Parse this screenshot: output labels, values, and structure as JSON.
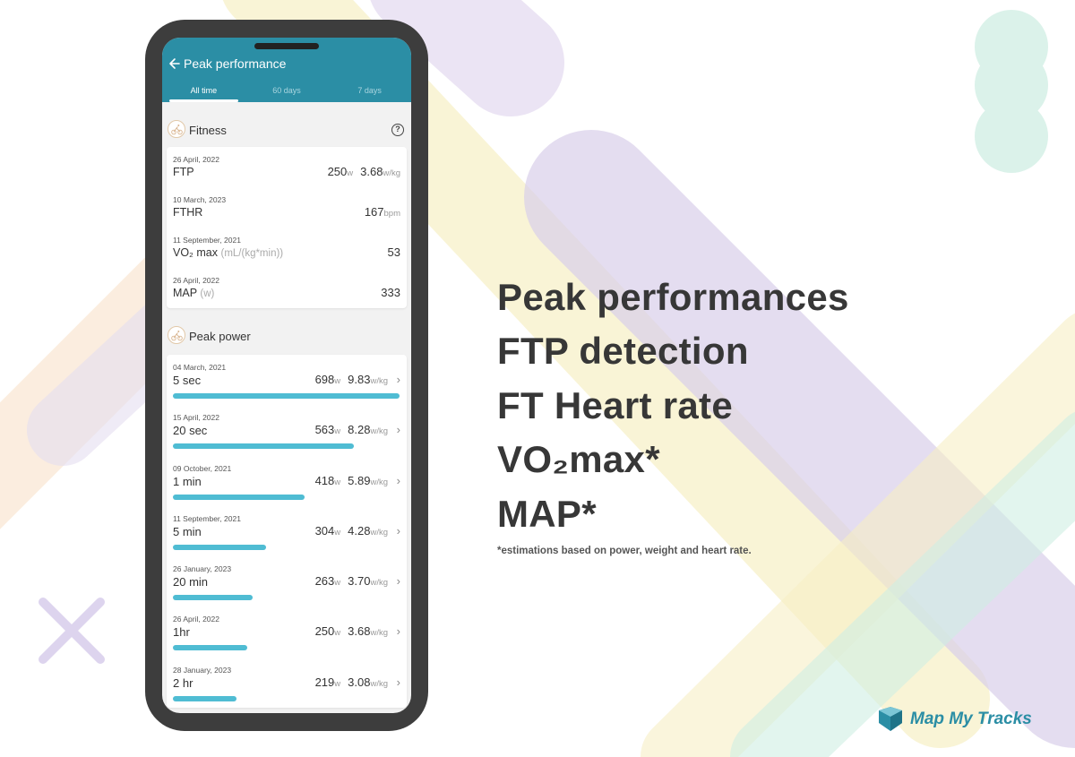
{
  "app": {
    "title": "Peak performance",
    "tabs": [
      {
        "label": "All time",
        "active": true
      },
      {
        "label": "60 days",
        "active": false
      },
      {
        "label": "7 days",
        "active": false
      }
    ]
  },
  "fitness": {
    "title": "Fitness",
    "help_glyph": "?",
    "rows": [
      {
        "date": "26 April, 2022",
        "label": "FTP",
        "label_unit": "",
        "value1": "250",
        "unit1": "w",
        "value2": "3.68",
        "unit2": "w/kg"
      },
      {
        "date": "10 March, 2023",
        "label": "FTHR",
        "label_unit": "",
        "value1": "167",
        "unit1": "bpm"
      },
      {
        "date": "11 September, 2021",
        "label": "VO₂ max",
        "label_unit": "(mL/(kg*min))",
        "value1": "53",
        "unit1": ""
      },
      {
        "date": "26 April, 2022",
        "label": "MAP",
        "label_unit": "(w)",
        "value1": "333",
        "unit1": ""
      }
    ]
  },
  "peak_power": {
    "title": "Peak power",
    "rows": [
      {
        "date": "04 March, 2021",
        "label": "5 sec",
        "watts": "698",
        "wunit": "w",
        "wkg": "9.83",
        "wkgunit": "w/kg",
        "fill": 1.0
      },
      {
        "date": "15 April, 2022",
        "label": "20 sec",
        "watts": "563",
        "wunit": "w",
        "wkg": "8.28",
        "wkgunit": "w/kg",
        "fill": 0.8
      },
      {
        "date": "09 October, 2021",
        "label": "1 min",
        "watts": "418",
        "wunit": "w",
        "wkg": "5.89",
        "wkgunit": "w/kg",
        "fill": 0.58
      },
      {
        "date": "11 September, 2021",
        "label": "5 min",
        "watts": "304",
        "wunit": "w",
        "wkg": "4.28",
        "wkgunit": "w/kg",
        "fill": 0.41
      },
      {
        "date": "26 January, 2023",
        "label": "20 min",
        "watts": "263",
        "wunit": "w",
        "wkg": "3.70",
        "wkgunit": "w/kg",
        "fill": 0.35
      },
      {
        "date": "26 April, 2022",
        "label": "1hr",
        "watts": "250",
        "wunit": "w",
        "wkg": "3.68",
        "wkgunit": "w/kg",
        "fill": 0.33
      },
      {
        "date": "28 January, 2023",
        "label": "2 hr",
        "watts": "219",
        "wunit": "w",
        "wkg": "3.08",
        "wkgunit": "w/kg",
        "fill": 0.28
      }
    ]
  },
  "marketing": {
    "lines": [
      "Peak performances",
      "FTP detection",
      "FT Heart rate",
      "VO₂max*",
      "MAP*"
    ],
    "footnote": "*estimations based on power, weight and heart rate."
  },
  "brand": {
    "name": "Map My Tracks"
  },
  "colors": {
    "appbar": "#2b8ea5",
    "bar": "#4fbcd3",
    "purple": "#d9cfe9",
    "yellow": "#f7efc4",
    "mint": "#cfeee3",
    "peach": "#f8dfc4"
  },
  "icons": {
    "back": "arrow-left-icon",
    "section": "cyclist-icon",
    "help": "question-circle-icon",
    "row": "chevron-right-icon",
    "brand": "map-my-tracks-logo"
  }
}
